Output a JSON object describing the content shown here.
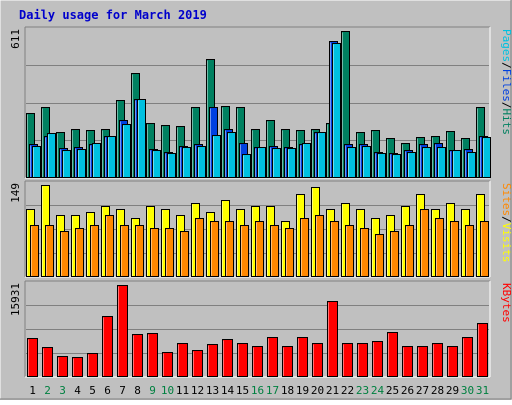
{
  "colors": {
    "background": "#C0C0C0",
    "border_dark": "#808080",
    "border_light": "#FFFFFF",
    "panel": "#C0C0C0",
    "title": "#0000CC",
    "pages": "#00C0E0",
    "files": "#0040E0",
    "hits": "#008060",
    "sites": "#FF8800",
    "visits": "#FFFF00",
    "kbytes": "#FF0000",
    "weekend_day": "#008040",
    "weekday": "#000000",
    "gridline": "#808080"
  },
  "chart_data": {
    "type": "bar",
    "title": "Daily usage for March 2019",
    "categories": [
      "1",
      "2",
      "3",
      "4",
      "5",
      "6",
      "7",
      "8",
      "9",
      "10",
      "11",
      "12",
      "13",
      "14",
      "15",
      "16",
      "17",
      "18",
      "19",
      "20",
      "21",
      "22",
      "23",
      "24",
      "25",
      "26",
      "27",
      "28",
      "29",
      "30",
      "31"
    ],
    "weekend_days": [
      "2",
      "3",
      "9",
      "10",
      "16",
      "17",
      "23",
      "24",
      "30",
      "31"
    ],
    "panels": [
      {
        "name": "hits-files-pages",
        "max_label": "611",
        "ylim": [
          0,
          611
        ],
        "legend": [
          "Pages",
          "/",
          "Files",
          "/",
          "Hits"
        ],
        "series": [
          {
            "name": "Hits",
            "color_key": "hits",
            "values": [
              270,
              295,
              190,
              205,
              200,
              205,
              325,
              435,
              230,
              220,
              215,
              295,
              495,
              300,
              295,
              205,
              240,
              205,
              200,
              205,
              230,
              611,
              190,
              200,
              165,
              145,
              170,
              175,
              195,
              165,
              295
            ]
          },
          {
            "name": "Files",
            "color_key": "files",
            "values": [
              140,
              175,
              125,
              130,
              140,
              175,
              240,
              330,
              120,
              110,
              135,
              140,
              295,
              205,
              145,
              130,
              135,
              130,
              140,
              190,
              570,
              140,
              140,
              110,
              105,
              115,
              140,
              145,
              115,
              120,
              175
            ]
          },
          {
            "name": "Pages",
            "color_key": "pages",
            "values": [
              135,
              185,
              115,
              120,
              145,
              175,
              225,
              330,
              115,
              105,
              130,
              135,
              180,
              190,
              100,
              130,
              125,
              125,
              145,
              190,
              560,
              130,
              135,
              105,
              100,
              110,
              130,
              130,
              115,
              110,
              170
            ]
          }
        ]
      },
      {
        "name": "visits-sites",
        "max_label": "149",
        "ylim": [
          0,
          149
        ],
        "legend": [
          "Sites",
          "/",
          "Visits"
        ],
        "series": [
          {
            "name": "Visits",
            "color_key": "visits",
            "values": [
              110,
              149,
              100,
              100,
              105,
              115,
              110,
              95,
              115,
              110,
              100,
              120,
              105,
              125,
              110,
              115,
              115,
              90,
              135,
              145,
              110,
              120,
              110,
              95,
              100,
              115,
              135,
              110,
              120,
              110,
              135
            ]
          },
          {
            "name": "Sites",
            "color_key": "sites",
            "values": [
              85,
              85,
              75,
              80,
              85,
              100,
              85,
              85,
              80,
              80,
              75,
              95,
              90,
              90,
              85,
              90,
              85,
              80,
              95,
              100,
              90,
              85,
              80,
              70,
              75,
              85,
              110,
              95,
              90,
              85,
              90
            ]
          }
        ]
      },
      {
        "name": "kbytes",
        "max_label": "15931",
        "ylim": [
          0,
          15931
        ],
        "legend": [
          "KBytes"
        ],
        "series": [
          {
            "name": "KBytes",
            "color_key": "kbytes",
            "values": [
              6800,
              5200,
              3700,
              3500,
              4100,
              10500,
              15931,
              7400,
              7700,
              4300,
              5900,
              4600,
              5800,
              6600,
              5900,
              5300,
              6900,
              5300,
              6900,
              5900,
              13200,
              5900,
              5900,
              6200,
              7800,
              5300,
              5300,
              5900,
              5300,
              6900,
              9400
            ]
          }
        ]
      }
    ]
  }
}
